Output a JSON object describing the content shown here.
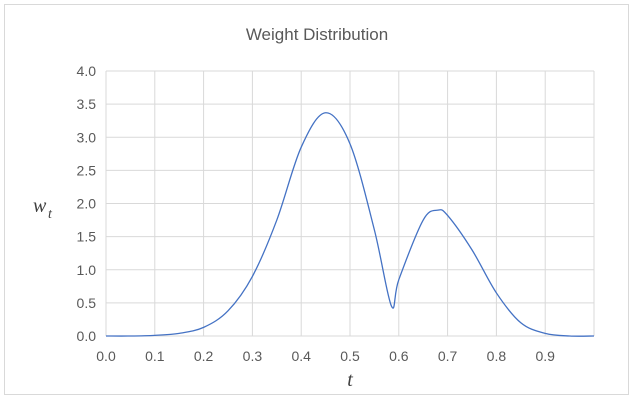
{
  "chart_data": {
    "type": "line",
    "title": "Weight Distribution",
    "xlabel": "t",
    "ylabel": {
      "main": "w",
      "subscript": "t"
    },
    "xlim": [
      0,
      1.0
    ],
    "ylim": [
      0,
      4.0
    ],
    "x_ticks": [
      "0.0",
      "0.1",
      "0.2",
      "0.3",
      "0.4",
      "0.5",
      "0.6",
      "0.7",
      "0.8",
      "0.9"
    ],
    "y_ticks": [
      "0.0",
      "0.5",
      "1.0",
      "1.5",
      "2.0",
      "2.5",
      "3.0",
      "3.5",
      "4.0"
    ],
    "grid": true,
    "legend": "none",
    "colors": {
      "line": "#4472c4",
      "grid": "#d9d9d9",
      "text": "#595959"
    },
    "series": [
      {
        "x": [
          0.0,
          0.05,
          0.1,
          0.15,
          0.2,
          0.25,
          0.3,
          0.35,
          0.4,
          0.45,
          0.5,
          0.55,
          0.585,
          0.6,
          0.65,
          0.68,
          0.7,
          0.75,
          0.8,
          0.85,
          0.9,
          0.95,
          1.0
        ],
        "y": [
          0.0,
          0.0,
          0.01,
          0.04,
          0.13,
          0.38,
          0.9,
          1.75,
          2.85,
          3.37,
          2.9,
          1.6,
          0.45,
          0.85,
          1.75,
          1.9,
          1.82,
          1.3,
          0.65,
          0.2,
          0.04,
          0.0,
          0.0
        ]
      }
    ]
  }
}
